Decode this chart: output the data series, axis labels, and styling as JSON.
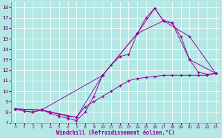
{
  "xlabel": "Windchill (Refroidissement éolien,°C)",
  "bg_color": "#b3e8e5",
  "grid_color": "#ffffff",
  "line_color": "#990099",
  "xlim": [
    -0.5,
    23.5
  ],
  "ylim": [
    7,
    18.5
  ],
  "xticks": [
    0,
    1,
    2,
    3,
    4,
    5,
    6,
    7,
    8,
    9,
    10,
    11,
    12,
    13,
    14,
    15,
    16,
    17,
    18,
    19,
    20,
    21,
    22,
    23
  ],
  "yticks": [
    7,
    8,
    9,
    10,
    11,
    12,
    13,
    14,
    15,
    16,
    17,
    18
  ],
  "line1_x": [
    0,
    1,
    2,
    3,
    4,
    5,
    6,
    7,
    8,
    9,
    10,
    11,
    12,
    13,
    14,
    15,
    16,
    17,
    18,
    19,
    20,
    21,
    22,
    23
  ],
  "line1_y": [
    8.3,
    8.1,
    8.0,
    8.2,
    7.9,
    7.6,
    7.4,
    7.2,
    8.0,
    9.5,
    11.5,
    12.5,
    13.3,
    13.5,
    15.5,
    17.0,
    17.9,
    16.7,
    16.5,
    15.2,
    13.0,
    11.8,
    11.6,
    11.7
  ],
  "line2_x": [
    0,
    1,
    2,
    3,
    4,
    5,
    6,
    7,
    8,
    9,
    10,
    11,
    12,
    13,
    14,
    15,
    16,
    17,
    18,
    19,
    20,
    21,
    22,
    23
  ],
  "line2_y": [
    8.3,
    8.1,
    8.0,
    8.2,
    8.0,
    7.8,
    7.6,
    7.5,
    8.5,
    9.0,
    9.5,
    10.0,
    10.5,
    11.0,
    11.2,
    11.3,
    11.4,
    11.5,
    11.5,
    11.5,
    11.5,
    11.5,
    11.5,
    11.7
  ],
  "line3_x": [
    0,
    3,
    10,
    14,
    16,
    17,
    18,
    20,
    23
  ],
  "line3_y": [
    8.3,
    8.2,
    11.5,
    15.5,
    17.9,
    16.7,
    16.5,
    13.0,
    11.7
  ],
  "line4_x": [
    0,
    3,
    7,
    10,
    14,
    17,
    20,
    23
  ],
  "line4_y": [
    8.3,
    8.2,
    7.5,
    11.5,
    15.5,
    16.7,
    15.2,
    11.7
  ]
}
